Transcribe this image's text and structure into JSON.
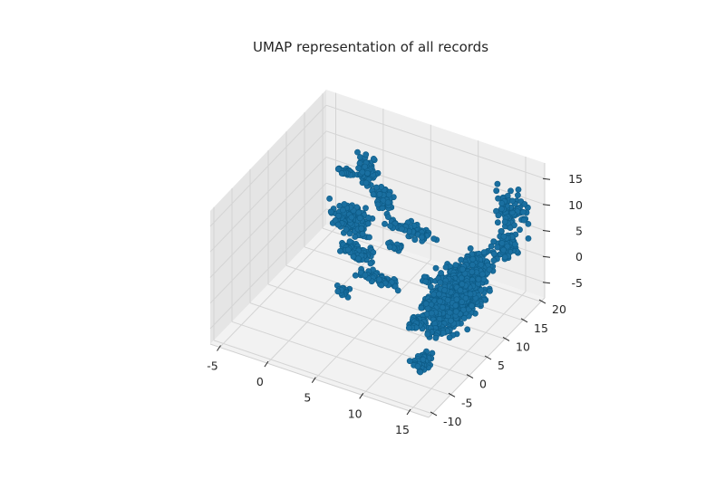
{
  "chart_data": {
    "type": "scatter",
    "projection": "3d",
    "title": "UMAP representation of all records",
    "xlabel": "",
    "ylabel": "",
    "zlabel": "",
    "grid": true,
    "xlim": [
      -6,
      17
    ],
    "ylim": [
      -11,
      21
    ],
    "zlim": [
      -8,
      18
    ],
    "x_ticks": [
      "-5",
      "0",
      "5",
      "10",
      "15"
    ],
    "y_ticks": [
      "-10",
      "-5",
      "0",
      "5",
      "10",
      "15",
      "20"
    ],
    "z_ticks": [
      "-5",
      "0",
      "5",
      "10",
      "15"
    ],
    "colors": {
      "marker": "#1a6fa0",
      "marker_edge": "#0d5a85",
      "pane_left": "#e5e5e5",
      "pane_back": "#eeeeee",
      "pane_floor": "#f2f2f2"
    },
    "clusters": [
      {
        "center": [
          0.1,
          16.1,
          9.7
        ],
        "spread": [
          0.45,
          0.45,
          1.4
        ],
        "count": 80
      },
      {
        "center": [
          -2.3,
          17.4,
          6.8
        ],
        "spread": [
          0.45,
          0.25,
          0.3
        ],
        "count": 30
      },
      {
        "center": [
          1.6,
          17.1,
          4.2
        ],
        "spread": [
          0.55,
          0.4,
          1.1
        ],
        "count": 60
      },
      {
        "center": [
          -0.3,
          13.0,
          2.5
        ],
        "spread": [
          1.0,
          0.8,
          1.2
        ],
        "count": 140
      },
      {
        "center": [
          -2.2,
          17.5,
          -2.6
        ],
        "spread": [
          0.35,
          0.35,
          0.7
        ],
        "count": 40
      },
      {
        "center": [
          1.8,
          9.4,
          -0.3
        ],
        "spread": [
          0.9,
          0.5,
          0.5
        ],
        "count": 80
      },
      {
        "center": [
          5.3,
          5.9,
          -0.6
        ],
        "spread": [
          1.0,
          0.4,
          0.35
        ],
        "count": 60
      },
      {
        "center": [
          2.4,
          3.8,
          -3.2
        ],
        "spread": [
          0.3,
          0.3,
          0.45
        ],
        "count": 20
      },
      {
        "center": [
          5.8,
          13.3,
          3.8
        ],
        "spread": [
          1.2,
          0.3,
          0.6
        ],
        "count": 80
      },
      {
        "center": [
          5.0,
          11.3,
          1.6
        ],
        "spread": [
          0.35,
          0.3,
          0.35
        ],
        "count": 15
      },
      {
        "center": [
          15.3,
          16.0,
          11.0
        ],
        "spread": [
          0.8,
          0.35,
          2.0
        ],
        "count": 90
      },
      {
        "center": [
          16.2,
          12.5,
          7.8
        ],
        "spread": [
          0.5,
          0.8,
          1.0
        ],
        "count": 70
      },
      {
        "center": [
          16.1,
          4.9,
          10.1
        ],
        "spread": [
          0.7,
          1.2,
          0.6
        ],
        "count": 100
      },
      {
        "center": [
          15.5,
          2.8,
          5.3
        ],
        "spread": [
          0.6,
          1.5,
          1.0
        ],
        "count": 120
      },
      {
        "center": [
          12.4,
          8.1,
          1.9
        ],
        "spread": [
          0.6,
          1.0,
          0.8
        ],
        "count": 80
      },
      {
        "center": [
          12.4,
          8.5,
          -1.4
        ],
        "spread": [
          1.0,
          2.6,
          1.8
        ],
        "count": 650
      },
      {
        "center": [
          12.1,
          4.4,
          -1.2
        ],
        "spread": [
          0.6,
          1.0,
          0.9
        ],
        "count": 140
      },
      {
        "center": [
          8.6,
          10.6,
          -2.2
        ],
        "spread": [
          0.25,
          0.25,
          0.25
        ],
        "count": 10
      },
      {
        "center": [
          11.3,
          0.7,
          -1.5
        ],
        "spread": [
          0.4,
          0.7,
          0.4
        ],
        "count": 40
      },
      {
        "center": [
          14.0,
          -0.3,
          -0.5
        ],
        "spread": [
          0.5,
          1.0,
          0.5
        ],
        "count": 50
      },
      {
        "center": [
          15.0,
          -7.7,
          -0.8
        ],
        "spread": [
          0.35,
          0.8,
          0.5
        ],
        "count": 60
      }
    ]
  }
}
